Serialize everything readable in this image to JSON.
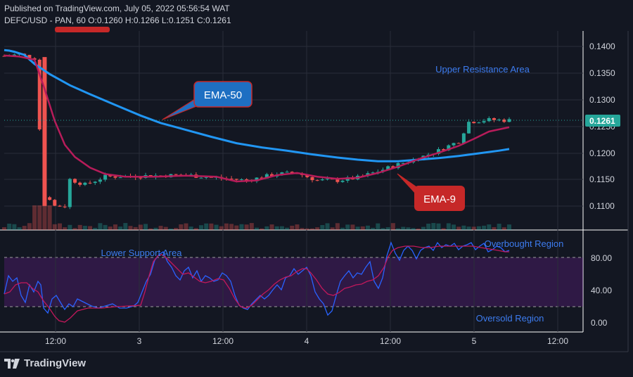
{
  "header": {
    "published": "Published on TradingView.com, July 05, 2022 05:56:54 WAT",
    "symbol": "DEFC/USD - PAN, 60",
    "ohlc": "O:0.1260 H:0.1266 L:0.1251 C:0.1261"
  },
  "price_axis": {
    "ticks": [
      "0.1400",
      "0.1350",
      "0.1300",
      "0.1250",
      "0.1200",
      "0.1150",
      "0.1100"
    ],
    "current_price": "0.1261"
  },
  "osc_axis": {
    "ticks": [
      "80.00",
      "40.00",
      "0.00"
    ]
  },
  "time_axis": {
    "ticks": [
      "12:00",
      "3",
      "12:00",
      "4",
      "12:00",
      "5",
      "12:00"
    ]
  },
  "annotations": {
    "upper_resistance": "Upper Resistance Area",
    "lower_support": "Lower Support Area",
    "overbought": "Overbought Region",
    "oversold": "Oversold Region",
    "ema50": "EMA-50",
    "ema9": "EMA-9"
  },
  "colors": {
    "background": "#131722",
    "up": "#26a69a",
    "down": "#ef5350",
    "ema50": "#2196f3",
    "ema9": "#b71c5a",
    "label_text": "#3d7cf0",
    "ema50_box": "#1e6fc2",
    "ema9_box": "#c62828",
    "current_price": "#26a69a"
  },
  "brand": {
    "name": "TradingView",
    "icon": "tradingview-logo-icon"
  },
  "chart_data": {
    "type": "candlestick",
    "ema50": [
      [
        0,
        0.1393
      ],
      [
        1,
        0.1392
      ],
      [
        2,
        0.139
      ],
      [
        4,
        0.1384
      ],
      [
        6,
        0.1367
      ],
      [
        9,
        0.1348
      ],
      [
        13,
        0.1327
      ],
      [
        17,
        0.131
      ],
      [
        22,
        0.129
      ],
      [
        27,
        0.127
      ],
      [
        31,
        0.1256
      ],
      [
        36,
        0.1243
      ],
      [
        41,
        0.123
      ],
      [
        46,
        0.1218
      ],
      [
        51,
        0.121
      ],
      [
        56,
        0.1204
      ],
      [
        61,
        0.1197
      ],
      [
        66,
        0.1191
      ],
      [
        70,
        0.1187
      ],
      [
        74,
        0.1184
      ],
      [
        78,
        0.1184
      ],
      [
        82,
        0.1187
      ],
      [
        86,
        0.119
      ],
      [
        90,
        0.1194
      ],
      [
        94,
        0.1199
      ],
      [
        98,
        0.1204
      ],
      [
        100,
        0.1207
      ]
    ],
    "ema9": [
      [
        0,
        0.1383
      ],
      [
        3,
        0.1381
      ],
      [
        6,
        0.1375
      ],
      [
        8,
        0.132
      ],
      [
        10,
        0.126
      ],
      [
        12,
        0.1215
      ],
      [
        14,
        0.1192
      ],
      [
        17,
        0.1172
      ],
      [
        20,
        0.116
      ],
      [
        24,
        0.1155
      ],
      [
        30,
        0.1155
      ],
      [
        36,
        0.1157
      ],
      [
        42,
        0.1155
      ],
      [
        46,
        0.1146
      ],
      [
        50,
        0.1148
      ],
      [
        54,
        0.1158
      ],
      [
        58,
        0.1162
      ],
      [
        62,
        0.1155
      ],
      [
        66,
        0.1151
      ],
      [
        70,
        0.1153
      ],
      [
        74,
        0.1162
      ],
      [
        78,
        0.1174
      ],
      [
        82,
        0.1188
      ],
      [
        86,
        0.12
      ],
      [
        90,
        0.1213
      ],
      [
        93,
        0.1226
      ],
      [
        96,
        0.124
      ],
      [
        100,
        0.1248
      ]
    ],
    "osc_ranges": {
      "overbought_level": 80,
      "oversold_level": 20,
      "ylim": [
        -5,
        110
      ]
    }
  }
}
